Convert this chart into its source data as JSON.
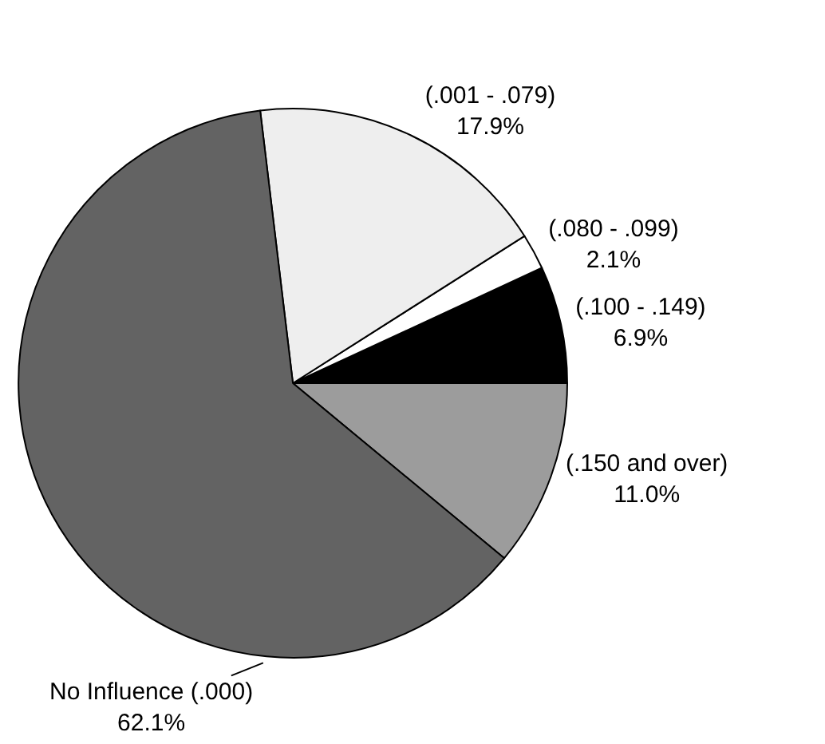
{
  "chart_data": {
    "type": "pie",
    "categories": [
      "(.150 and over)",
      "(.100 - .149)",
      "(.080 - .099)",
      "(.001 - .079)",
      "No Influence (.000)"
    ],
    "values": [
      11.0,
      6.9,
      2.1,
      17.9,
      62.1
    ],
    "value_labels": [
      "11.0%",
      "6.9%",
      "2.1%",
      "17.9%",
      "62.1%"
    ],
    "colors": [
      "#9c9c9c",
      "#000000",
      "#ffffff",
      "#eeeeee",
      "#636363"
    ]
  }
}
